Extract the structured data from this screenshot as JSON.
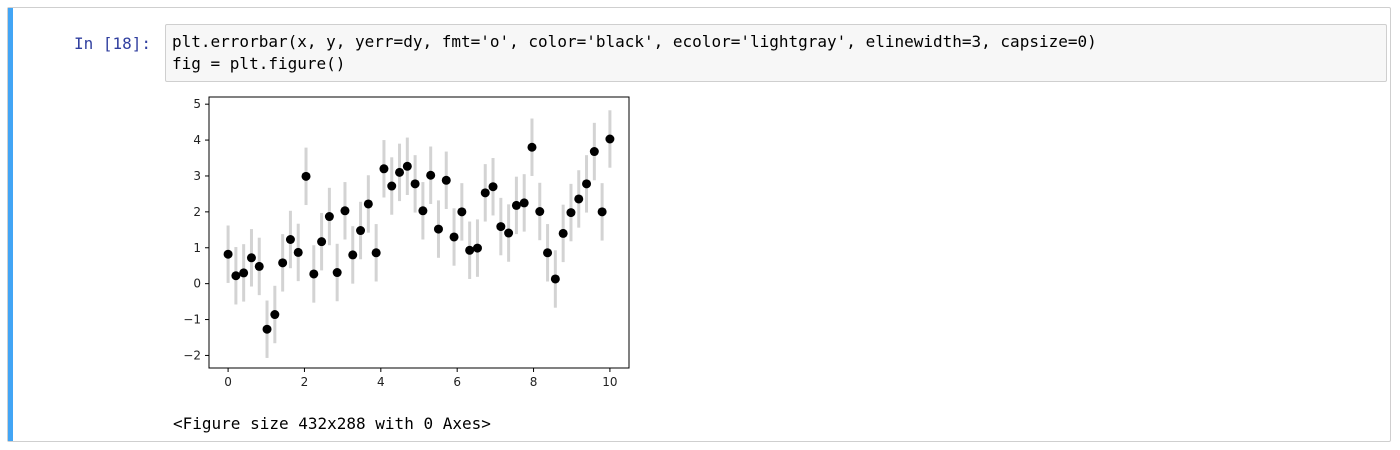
{
  "cell": {
    "prompt": "In [18]:",
    "code_lines": [
      "plt.errorbar(x, y, yerr=dy, fmt='o', color='black', ecolor='lightgray', elinewidth=3, capsize=0)",
      "fig = plt.figure()"
    ],
    "output_text": "<Figure size 432x288 with 0 Axes>"
  },
  "chart_data": {
    "type": "scatter",
    "title": "",
    "xlabel": "",
    "ylabel": "",
    "xlim": [
      -0.5,
      10.5
    ],
    "ylim": [
      -2.35,
      5.2
    ],
    "xticks": [
      0,
      2,
      4,
      6,
      8,
      10
    ],
    "yticks": [
      -2,
      -1,
      0,
      1,
      2,
      3,
      4,
      5
    ],
    "marker_color": "#000000",
    "error_color": "#d3d3d3",
    "error": 0.8,
    "points": [
      [
        0.0,
        0.82
      ],
      [
        0.204,
        0.22
      ],
      [
        0.408,
        0.3
      ],
      [
        0.612,
        0.72
      ],
      [
        0.816,
        0.48
      ],
      [
        1.02,
        -1.27
      ],
      [
        1.224,
        -0.86
      ],
      [
        1.429,
        0.58
      ],
      [
        1.633,
        1.23
      ],
      [
        1.837,
        0.87
      ],
      [
        2.041,
        2.99
      ],
      [
        2.245,
        0.27
      ],
      [
        2.449,
        1.17
      ],
      [
        2.653,
        1.87
      ],
      [
        2.857,
        0.31
      ],
      [
        3.061,
        2.03
      ],
      [
        3.265,
        0.8
      ],
      [
        3.469,
        1.48
      ],
      [
        3.673,
        2.22
      ],
      [
        3.878,
        0.86
      ],
      [
        4.082,
        3.2
      ],
      [
        4.286,
        2.72
      ],
      [
        4.49,
        3.1
      ],
      [
        4.694,
        3.27
      ],
      [
        4.898,
        2.78
      ],
      [
        5.102,
        2.03
      ],
      [
        5.306,
        3.02
      ],
      [
        5.51,
        1.52
      ],
      [
        5.714,
        2.88
      ],
      [
        5.918,
        1.3
      ],
      [
        6.122,
        2.0
      ],
      [
        6.327,
        0.93
      ],
      [
        6.531,
        0.99
      ],
      [
        6.735,
        2.53
      ],
      [
        6.939,
        2.7
      ],
      [
        7.143,
        1.59
      ],
      [
        7.347,
        1.41
      ],
      [
        7.551,
        2.18
      ],
      [
        7.755,
        2.25
      ],
      [
        7.959,
        3.8
      ],
      [
        8.163,
        2.01
      ],
      [
        8.367,
        0.86
      ],
      [
        8.571,
        0.13
      ],
      [
        8.776,
        1.4
      ],
      [
        8.98,
        1.98
      ],
      [
        9.184,
        2.36
      ],
      [
        9.388,
        2.78
      ],
      [
        9.592,
        3.68
      ],
      [
        9.796,
        2.0
      ],
      [
        10.0,
        4.03
      ]
    ]
  }
}
